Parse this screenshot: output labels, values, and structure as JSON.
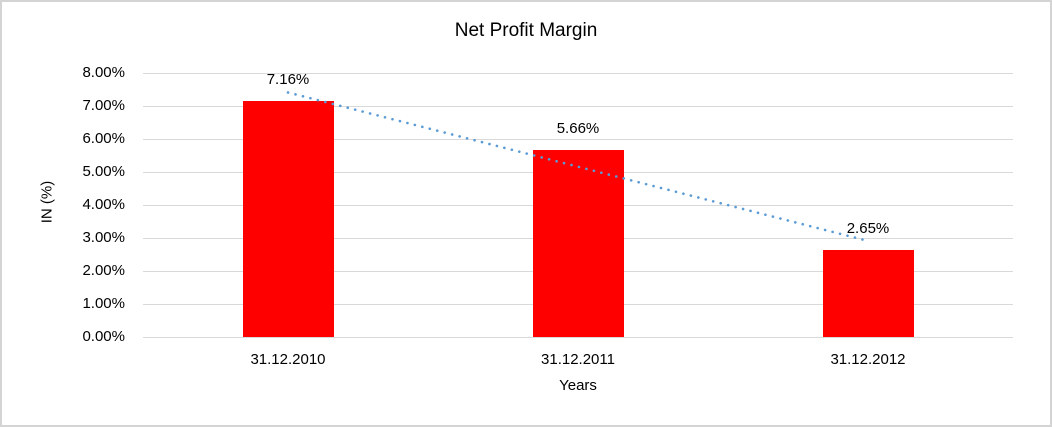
{
  "chart_data": {
    "type": "bar",
    "title": "Net Profit Margin",
    "xlabel": "Years",
    "ylabel": "IN (%)",
    "categories": [
      "31.12.2010",
      "31.12.2011",
      "31.12.2012"
    ],
    "values": [
      7.16,
      5.66,
      2.65
    ],
    "data_labels": [
      "7.16%",
      "5.66%",
      "2.65%"
    ],
    "ylim": [
      0,
      8
    ],
    "ytick_step": 1,
    "ytick_labels": [
      "0.00%",
      "1.00%",
      "2.00%",
      "3.00%",
      "4.00%",
      "5.00%",
      "6.00%",
      "7.00%",
      "8.00%"
    ],
    "grid": true,
    "legend": "none",
    "bar_color": "#ff0000",
    "gridline_color": "#d9d9d9",
    "trendline": {
      "type": "linear",
      "style": "dotted",
      "color": "#5b9bd5",
      "values": [
        7.41,
        5.16,
        2.91
      ]
    }
  }
}
